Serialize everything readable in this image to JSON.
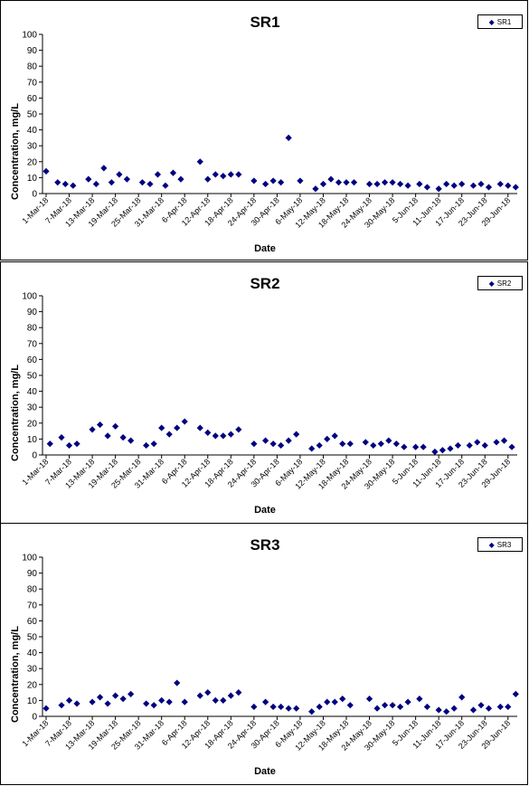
{
  "chart_data": [
    {
      "type": "scatter",
      "title": "SR1",
      "xlabel": "Date",
      "ylabel": "Concentration, mg/L",
      "ylim": [
        0,
        100
      ],
      "yticks": [
        "0",
        "10",
        "20",
        "30",
        "40",
        "50",
        "60",
        "70",
        "80",
        "90",
        "100"
      ],
      "xticks": [
        "1-Mar-18",
        "7-Mar-18",
        "13-Mar-18",
        "19-Mar-18",
        "25-Mar-18",
        "31-Mar-18",
        "6-Apr-18",
        "12-Apr-18",
        "18-Apr-18",
        "24-Apr-18",
        "30-Apr-18",
        "6-May-18",
        "12-May-18",
        "18-May-18",
        "24-May-18",
        "30-May-18",
        "5-Jun-18",
        "11-Jun-18",
        "17-Jun-18",
        "23-Jun-18",
        "29-Jun-18"
      ],
      "legend": "top-right",
      "color": "#000080",
      "series": [
        {
          "name": "SR1",
          "points": [
            [
              "1-Mar-18",
              14
            ],
            [
              "4-Mar-18",
              7
            ],
            [
              "6-Mar-18",
              6
            ],
            [
              "8-Mar-18",
              5
            ],
            [
              "12-Mar-18",
              9
            ],
            [
              "14-Mar-18",
              6
            ],
            [
              "16-Mar-18",
              16
            ],
            [
              "18-Mar-18",
              7
            ],
            [
              "20-Mar-18",
              12
            ],
            [
              "22-Mar-18",
              9
            ],
            [
              "26-Mar-18",
              7
            ],
            [
              "28-Mar-18",
              6
            ],
            [
              "30-Mar-18",
              12
            ],
            [
              "1-Apr-18",
              5
            ],
            [
              "3-Apr-18",
              13
            ],
            [
              "5-Apr-18",
              9
            ],
            [
              "10-Apr-18",
              20
            ],
            [
              "12-Apr-18",
              9
            ],
            [
              "14-Apr-18",
              12
            ],
            [
              "16-Apr-18",
              11
            ],
            [
              "18-Apr-18",
              12
            ],
            [
              "20-Apr-18",
              12
            ],
            [
              "24-Apr-18",
              8
            ],
            [
              "27-Apr-18",
              6
            ],
            [
              "29-Apr-18",
              8
            ],
            [
              "1-May-18",
              7
            ],
            [
              "3-May-18",
              35
            ],
            [
              "6-May-18",
              8
            ],
            [
              "10-May-18",
              3
            ],
            [
              "12-May-18",
              6
            ],
            [
              "14-May-18",
              9
            ],
            [
              "16-May-18",
              7
            ],
            [
              "18-May-18",
              7
            ],
            [
              "20-May-18",
              7
            ],
            [
              "24-May-18",
              6
            ],
            [
              "26-May-18",
              6
            ],
            [
              "28-May-18",
              7
            ],
            [
              "30-May-18",
              7
            ],
            [
              "1-Jun-18",
              6
            ],
            [
              "3-Jun-18",
              5
            ],
            [
              "6-Jun-18",
              6
            ],
            [
              "8-Jun-18",
              4
            ],
            [
              "11-Jun-18",
              3
            ],
            [
              "13-Jun-18",
              6
            ],
            [
              "15-Jun-18",
              5
            ],
            [
              "17-Jun-18",
              6
            ],
            [
              "20-Jun-18",
              5
            ],
            [
              "22-Jun-18",
              6
            ],
            [
              "24-Jun-18",
              4
            ],
            [
              "27-Jun-18",
              6
            ],
            [
              "29-Jun-18",
              5
            ],
            [
              "1-Jul-18",
              4
            ]
          ]
        }
      ]
    },
    {
      "type": "scatter",
      "title": "SR2",
      "xlabel": "Date",
      "ylabel": "Concentration, mg/L",
      "ylim": [
        0,
        100
      ],
      "yticks": [
        "0",
        "10",
        "20",
        "30",
        "40",
        "50",
        "60",
        "70",
        "80",
        "90",
        "100"
      ],
      "xticks": [
        "1-Mar-18",
        "7-Mar-18",
        "13-Mar-18",
        "19-Mar-18",
        "25-Mar-18",
        "31-Mar-18",
        "6-Apr-18",
        "12-Apr-18",
        "18-Apr-18",
        "24-Apr-18",
        "30-Apr-18",
        "6-May-18",
        "12-May-18",
        "18-May-18",
        "24-May-18",
        "30-May-18",
        "5-Jun-18",
        "11-Jun-18",
        "17-Jun-18",
        "23-Jun-18",
        "29-Jun-18"
      ],
      "legend": "top-right",
      "color": "#000080",
      "series": [
        {
          "name": "SR2",
          "points": [
            [
              "2-Mar-18",
              7
            ],
            [
              "5-Mar-18",
              11
            ],
            [
              "7-Mar-18",
              6
            ],
            [
              "9-Mar-18",
              7
            ],
            [
              "13-Mar-18",
              16
            ],
            [
              "15-Mar-18",
              19
            ],
            [
              "17-Mar-18",
              12
            ],
            [
              "19-Mar-18",
              18
            ],
            [
              "21-Mar-18",
              11
            ],
            [
              "23-Mar-18",
              9
            ],
            [
              "27-Mar-18",
              6
            ],
            [
              "29-Mar-18",
              7
            ],
            [
              "31-Mar-18",
              17
            ],
            [
              "2-Apr-18",
              13
            ],
            [
              "4-Apr-18",
              17
            ],
            [
              "6-Apr-18",
              21
            ],
            [
              "10-Apr-18",
              17
            ],
            [
              "12-Apr-18",
              14
            ],
            [
              "14-Apr-18",
              12
            ],
            [
              "16-Apr-18",
              12
            ],
            [
              "18-Apr-18",
              13
            ],
            [
              "20-Apr-18",
              16
            ],
            [
              "24-Apr-18",
              7
            ],
            [
              "27-Apr-18",
              9
            ],
            [
              "29-Apr-18",
              7
            ],
            [
              "1-May-18",
              6
            ],
            [
              "3-May-18",
              9
            ],
            [
              "5-May-18",
              13
            ],
            [
              "9-May-18",
              4
            ],
            [
              "11-May-18",
              6
            ],
            [
              "13-May-18",
              10
            ],
            [
              "15-May-18",
              12
            ],
            [
              "17-May-18",
              7
            ],
            [
              "19-May-18",
              7
            ],
            [
              "23-May-18",
              8
            ],
            [
              "25-May-18",
              6
            ],
            [
              "27-May-18",
              7
            ],
            [
              "29-May-18",
              9
            ],
            [
              "31-May-18",
              7
            ],
            [
              "2-Jun-18",
              5
            ],
            [
              "5-Jun-18",
              5
            ],
            [
              "7-Jun-18",
              5
            ],
            [
              "10-Jun-18",
              2
            ],
            [
              "12-Jun-18",
              3
            ],
            [
              "14-Jun-18",
              4
            ],
            [
              "16-Jun-18",
              6
            ],
            [
              "19-Jun-18",
              6
            ],
            [
              "21-Jun-18",
              8
            ],
            [
              "23-Jun-18",
              6
            ],
            [
              "26-Jun-18",
              8
            ],
            [
              "28-Jun-18",
              9
            ],
            [
              "30-Jun-18",
              5
            ]
          ]
        }
      ]
    },
    {
      "type": "scatter",
      "title": "SR3",
      "xlabel": "Date",
      "ylabel": "Concentration, mg/L",
      "ylim": [
        0,
        100
      ],
      "yticks": [
        "0",
        "10",
        "20",
        "30",
        "40",
        "50",
        "60",
        "70",
        "80",
        "90",
        "100"
      ],
      "xticks": [
        "1-Mar-18",
        "7-Mar-18",
        "13-Mar-18",
        "19-Mar-18",
        "25-Mar-18",
        "31-Mar-18",
        "6-Apr-18",
        "12-Apr-18",
        "18-Apr-18",
        "24-Apr-18",
        "30-Apr-18",
        "6-May-18",
        "12-May-18",
        "18-May-18",
        "24-May-18",
        "30-May-18",
        "5-Jun-18",
        "11-Jun-18",
        "17-Jun-18",
        "23-Jun-18",
        "29-Jun-18"
      ],
      "legend": "top-right",
      "color": "#000080",
      "series": [
        {
          "name": "SR3",
          "points": [
            [
              "1-Mar-18",
              5
            ],
            [
              "5-Mar-18",
              7
            ],
            [
              "7-Mar-18",
              10
            ],
            [
              "9-Mar-18",
              8
            ],
            [
              "13-Mar-18",
              9
            ],
            [
              "15-Mar-18",
              12
            ],
            [
              "17-Mar-18",
              8
            ],
            [
              "19-Mar-18",
              13
            ],
            [
              "21-Mar-18",
              11
            ],
            [
              "23-Mar-18",
              14
            ],
            [
              "27-Mar-18",
              8
            ],
            [
              "29-Mar-18",
              7
            ],
            [
              "31-Mar-18",
              10
            ],
            [
              "2-Apr-18",
              9
            ],
            [
              "4-Apr-18",
              21
            ],
            [
              "6-Apr-18",
              9
            ],
            [
              "10-Apr-18",
              13
            ],
            [
              "12-Apr-18",
              15
            ],
            [
              "14-Apr-18",
              10
            ],
            [
              "16-Apr-18",
              10
            ],
            [
              "18-Apr-18",
              13
            ],
            [
              "20-Apr-18",
              15
            ],
            [
              "24-Apr-18",
              6
            ],
            [
              "27-Apr-18",
              9
            ],
            [
              "29-Apr-18",
              6
            ],
            [
              "1-May-18",
              6
            ],
            [
              "3-May-18",
              5
            ],
            [
              "5-May-18",
              5
            ],
            [
              "9-May-18",
              3
            ],
            [
              "11-May-18",
              6
            ],
            [
              "13-May-18",
              9
            ],
            [
              "15-May-18",
              9
            ],
            [
              "17-May-18",
              11
            ],
            [
              "19-May-18",
              7
            ],
            [
              "24-May-18",
              11
            ],
            [
              "26-May-18",
              5
            ],
            [
              "28-May-18",
              7
            ],
            [
              "30-May-18",
              7
            ],
            [
              "1-Jun-18",
              6
            ],
            [
              "3-Jun-18",
              9
            ],
            [
              "6-Jun-18",
              11
            ],
            [
              "8-Jun-18",
              6
            ],
            [
              "11-Jun-18",
              4
            ],
            [
              "13-Jun-18",
              3
            ],
            [
              "15-Jun-18",
              5
            ],
            [
              "17-Jun-18",
              12
            ],
            [
              "20-Jun-18",
              4
            ],
            [
              "22-Jun-18",
              7
            ],
            [
              "24-Jun-18",
              5
            ],
            [
              "27-Jun-18",
              6
            ],
            [
              "29-Jun-18",
              6
            ],
            [
              "1-Jul-18",
              14
            ]
          ]
        }
      ]
    }
  ]
}
